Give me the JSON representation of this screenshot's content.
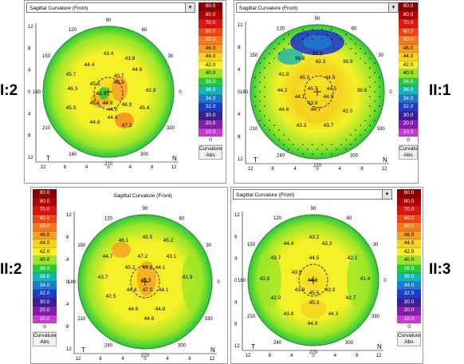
{
  "header_title": "Sagittal Curvature (Front)",
  "scale": {
    "values": [
      "90.0",
      "80.0",
      "70.0",
      "60.0",
      "50.0",
      "46.0",
      "44.0",
      "42.0",
      "40.0",
      "38.0",
      "36.0",
      "34.0",
      "32.0",
      "30.0",
      "20.0",
      "10.0",
      "0"
    ],
    "colors": [
      "#8b0000",
      "#b40000",
      "#dc1414",
      "#f04614",
      "#f5781e",
      "#f5a023",
      "#f5d21e",
      "#f5f028",
      "#9be628",
      "#28c83c",
      "#14b4b4",
      "#1e78d2",
      "#1e3cc8",
      "#3c1e96",
      "#821eaa",
      "#c83cd2",
      "#ffffff"
    ],
    "caption_line1": "Curvature",
    "caption_line2": "Abs"
  },
  "axis": {
    "y_ticks": [
      "12",
      "8",
      "4",
      "0",
      "4",
      "8",
      "12"
    ],
    "x_ticks": [
      "12",
      "8",
      "4",
      "0",
      "4",
      "8",
      "12"
    ],
    "left_letter": "T",
    "right_letter": "N",
    "polar_labels": [
      "90",
      "120",
      "150",
      "180",
      "210",
      "240",
      "270",
      "300",
      "330",
      "0",
      "30",
      "60"
    ]
  },
  "panels": [
    {
      "label": "I:2",
      "values": [
        "43.4",
        "43.8",
        "44.4",
        "44.6",
        "45.7",
        "40.7",
        "48.3",
        "46.3",
        "45.5",
        "41.9",
        "42.9",
        "45.1",
        "44.9",
        "45.5",
        "46.9",
        "45.4",
        "44.0",
        "44.4",
        "44.8",
        "47.3"
      ]
    },
    {
      "label": "II:1",
      "values": [
        "31.3",
        "36.8",
        "42.3",
        "38.9",
        "41.9",
        "45.0",
        "44.9",
        "44.2",
        "45.7",
        "44.1",
        "44.9",
        "39.6",
        "44.6",
        "44.7",
        "42.0",
        "43.3",
        "43.7",
        "44.5",
        "43.9"
      ]
    },
    {
      "label": "II:2",
      "values": [
        "46.1",
        "45.5",
        "45.2",
        "44.7",
        "47.2",
        "43.1",
        "45.2",
        "44.2",
        "44.1",
        "43.7",
        "45.3",
        "41.9",
        "44.4",
        "47.0",
        "44.1",
        "42.5",
        "44.6",
        "44.8",
        "44.6"
      ]
    },
    {
      "label": "II:3",
      "values": [
        "43.2",
        "44.4",
        "43.3",
        "43.7",
        "44.5",
        "42.1",
        "42.6",
        "43.6",
        "44.2",
        "41.4",
        "43.9",
        "42.9",
        "45.3",
        "43.9",
        "42.7",
        "45.5",
        "43.8",
        "44.3",
        "44.9"
      ]
    }
  ]
}
